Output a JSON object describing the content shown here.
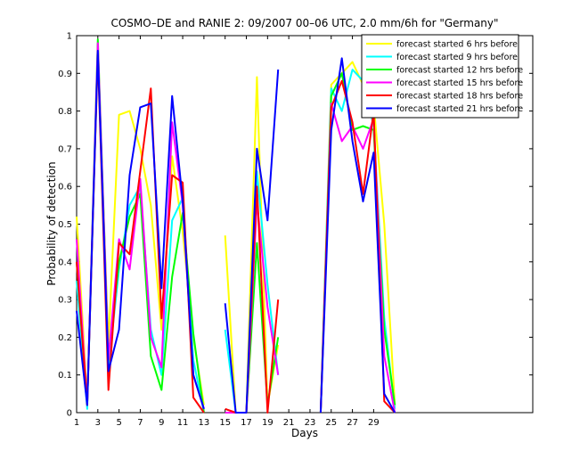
{
  "chart_data": {
    "type": "line",
    "title": "COSMO–DE and RANIE 2: 09/2007 00–06 UTC, 2.0 mm/6h for \"Germany\"",
    "xlabel": "Days",
    "ylabel": "Probability of detection",
    "xlim": [
      1,
      44
    ],
    "ylim": [
      0,
      1
    ],
    "xticks": [
      1,
      3,
      5,
      7,
      9,
      11,
      13,
      15,
      17,
      19,
      21,
      23,
      25,
      27,
      29
    ],
    "xtick_labels": [
      "1",
      "3",
      "5",
      "7",
      "9",
      "11",
      "13",
      "15",
      "17",
      "19",
      "21",
      "23",
      "25",
      "27",
      "29"
    ],
    "yticks": [
      0,
      0.1,
      0.2,
      0.3,
      0.4,
      0.5,
      0.6,
      0.7,
      0.8,
      0.9,
      1
    ],
    "ytick_labels": [
      "0",
      "0.1",
      "0.2",
      "0.3",
      "0.4",
      "0.5",
      "0.6",
      "0.7",
      "0.8",
      "0.9",
      "1"
    ],
    "legend_position": "top-right",
    "series": [
      {
        "name": "forecast started 6 hrs before",
        "color": "#ffff00",
        "points": [
          [
            1,
            0.52
          ],
          [
            2,
            0.03
          ],
          [
            3,
            0.95
          ],
          [
            4,
            0.18
          ],
          [
            5,
            0.79
          ],
          [
            6,
            0.8
          ],
          [
            7,
            0.7
          ],
          [
            8,
            0.55
          ],
          [
            9,
            0.22
          ],
          [
            10,
            0.68
          ],
          [
            11,
            0.48
          ],
          [
            12,
            0.2
          ],
          [
            13,
            0.02
          ],
          [
            null,
            null
          ],
          [
            15,
            0.47
          ],
          [
            16,
            0.0
          ],
          [
            17,
            0.0
          ],
          [
            18,
            0.89
          ],
          [
            19,
            0.02
          ],
          [
            20,
            0.18
          ],
          [
            null,
            null
          ],
          [
            24,
            0.0
          ],
          [
            25,
            0.87
          ],
          [
            26,
            0.9
          ],
          [
            27,
            0.93
          ],
          [
            28,
            0.87
          ],
          [
            29,
            0.82
          ],
          [
            30,
            0.5
          ],
          [
            31,
            0.02
          ]
        ]
      },
      {
        "name": "forecast started 9 hrs before",
        "color": "#00ffff",
        "points": [
          [
            1,
            0.35
          ],
          [
            2,
            0.01
          ],
          [
            3,
            0.97
          ],
          [
            4,
            0.12
          ],
          [
            5,
            0.38
          ],
          [
            6,
            0.55
          ],
          [
            7,
            0.6
          ],
          [
            8,
            0.22
          ],
          [
            9,
            0.1
          ],
          [
            10,
            0.51
          ],
          [
            11,
            0.57
          ],
          [
            12,
            0.14
          ],
          [
            13,
            0.0
          ],
          [
            null,
            null
          ],
          [
            15,
            0.22
          ],
          [
            16,
            0.0
          ],
          [
            17,
            0.0
          ],
          [
            18,
            0.64
          ],
          [
            19,
            0.34
          ],
          [
            20,
            0.1
          ],
          [
            null,
            null
          ],
          [
            24,
            0.0
          ],
          [
            25,
            0.86
          ],
          [
            26,
            0.8
          ],
          [
            27,
            0.91
          ],
          [
            28,
            0.88
          ],
          [
            29,
            0.76
          ],
          [
            30,
            0.25
          ],
          [
            31,
            0.01
          ]
        ]
      },
      {
        "name": "forecast started 12 hrs before",
        "color": "#00ff00",
        "points": [
          [
            1,
            0.4
          ],
          [
            2,
            0.02
          ],
          [
            3,
            0.99
          ],
          [
            4,
            0.15
          ],
          [
            5,
            0.4
          ],
          [
            6,
            0.52
          ],
          [
            7,
            0.58
          ],
          [
            8,
            0.15
          ],
          [
            9,
            0.06
          ],
          [
            10,
            0.36
          ],
          [
            11,
            0.53
          ],
          [
            12,
            0.21
          ],
          [
            13,
            0.0
          ],
          [
            null,
            null
          ],
          [
            15,
            0.0
          ],
          [
            16,
            0.0
          ],
          [
            17,
            0.0
          ],
          [
            18,
            0.45
          ],
          [
            19,
            0.02
          ],
          [
            20,
            0.2
          ],
          [
            null,
            null
          ],
          [
            24,
            0.0
          ],
          [
            25,
            0.84
          ],
          [
            26,
            0.9
          ],
          [
            27,
            0.75
          ],
          [
            28,
            0.76
          ],
          [
            29,
            0.75
          ],
          [
            30,
            0.22
          ],
          [
            31,
            0.02
          ]
        ]
      },
      {
        "name": "forecast started 15 hrs before",
        "color": "#ff00ff",
        "points": [
          [
            1,
            0.46
          ],
          [
            2,
            0.02
          ],
          [
            3,
            0.98
          ],
          [
            4,
            0.14
          ],
          [
            5,
            0.46
          ],
          [
            6,
            0.38
          ],
          [
            7,
            0.62
          ],
          [
            8,
            0.2
          ],
          [
            9,
            0.12
          ],
          [
            10,
            0.77
          ],
          [
            11,
            0.55
          ],
          [
            12,
            0.1
          ],
          [
            13,
            0.01
          ],
          [
            null,
            null
          ],
          [
            15,
            0.0
          ],
          [
            16,
            0.0
          ],
          [
            17,
            0.0
          ],
          [
            18,
            0.56
          ],
          [
            19,
            0.28
          ],
          [
            20,
            0.1
          ],
          [
            null,
            null
          ],
          [
            24,
            0.0
          ],
          [
            25,
            0.82
          ],
          [
            26,
            0.72
          ],
          [
            27,
            0.76
          ],
          [
            28,
            0.7
          ],
          [
            29,
            0.78
          ],
          [
            30,
            0.15
          ],
          [
            31,
            0.0
          ]
        ]
      },
      {
        "name": "forecast started 18 hrs before",
        "color": "#ff0000",
        "points": [
          [
            1,
            0.4
          ],
          [
            2,
            0.02
          ],
          [
            3,
            0.95
          ],
          [
            4,
            0.06
          ],
          [
            5,
            0.45
          ],
          [
            6,
            0.42
          ],
          [
            7,
            0.64
          ],
          [
            8,
            0.86
          ],
          [
            9,
            0.25
          ],
          [
            10,
            0.63
          ],
          [
            11,
            0.61
          ],
          [
            12,
            0.04
          ],
          [
            13,
            0.0
          ],
          [
            null,
            null
          ],
          [
            15,
            0.01
          ],
          [
            16,
            0.0
          ],
          [
            17,
            0.0
          ],
          [
            18,
            0.6
          ],
          [
            19,
            0.0
          ],
          [
            20,
            0.3
          ],
          [
            null,
            null
          ],
          [
            24,
            0.0
          ],
          [
            25,
            0.81
          ],
          [
            26,
            0.88
          ],
          [
            27,
            0.77
          ],
          [
            28,
            0.58
          ],
          [
            29,
            0.8
          ],
          [
            30,
            0.03
          ],
          [
            31,
            0.0
          ]
        ]
      },
      {
        "name": "forecast started 21 hrs before",
        "color": "#0000ff",
        "points": [
          [
            1,
            0.27
          ],
          [
            2,
            0.02
          ],
          [
            3,
            0.96
          ],
          [
            4,
            0.11
          ],
          [
            5,
            0.22
          ],
          [
            6,
            0.63
          ],
          [
            7,
            0.81
          ],
          [
            8,
            0.82
          ],
          [
            9,
            0.33
          ],
          [
            10,
            0.84
          ],
          [
            11,
            0.56
          ],
          [
            12,
            0.1
          ],
          [
            13,
            0.01
          ],
          [
            null,
            null
          ],
          [
            15,
            0.29
          ],
          [
            16,
            0.0
          ],
          [
            17,
            0.0
          ],
          [
            18,
            0.7
          ],
          [
            19,
            0.51
          ],
          [
            20,
            0.91
          ],
          [
            null,
            null
          ],
          [
            24,
            0.0
          ],
          [
            25,
            0.75
          ],
          [
            26,
            0.94
          ],
          [
            27,
            0.72
          ],
          [
            28,
            0.56
          ],
          [
            29,
            0.69
          ],
          [
            30,
            0.05
          ],
          [
            31,
            0.0
          ]
        ]
      }
    ]
  }
}
